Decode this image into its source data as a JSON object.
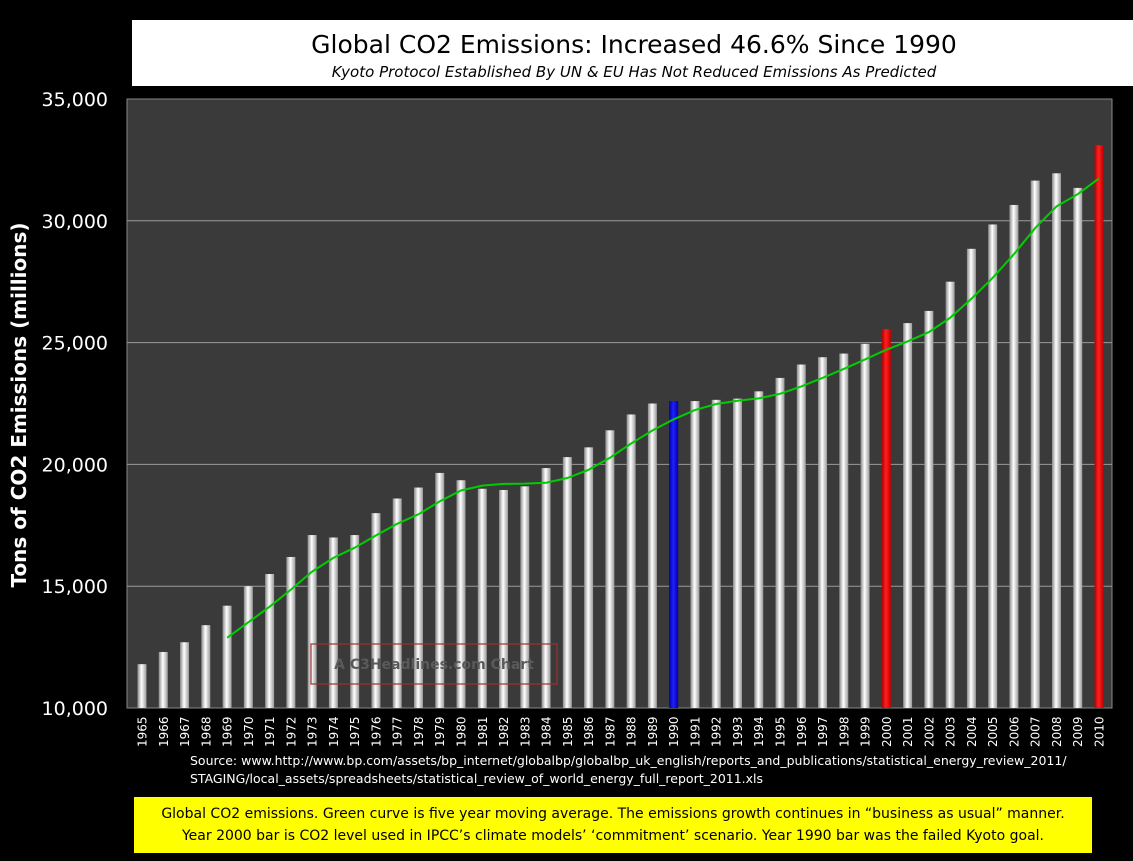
{
  "header": {
    "title": "Global CO2 Emissions: Increased 46.6% Since 1990",
    "subtitle": "Kyoto Protocol Established By UN & EU Has Not Reduced Emissions As Predicted"
  },
  "watermark": "A C3Headlines.com Chart",
  "source": {
    "line1": "Source: www.http://www.bp.com/assets/bp_internet/globalbp/globalbp_uk_english/reports_and_publications/statistical_energy_review_2011/",
    "line2": "STAGING/local_assets/spreadsheets/statistical_review_of_world_energy_full_report_2011.xls"
  },
  "note": {
    "line1": "Global CO2 emissions. Green curve is five year moving average. The emissions growth continues in “business as usual” manner.",
    "line2": "Year 2000 bar is CO2 level used in IPCC’s climate models’ ‘commitment’ scenario. Year 1990 bar was the failed Kyoto goal."
  },
  "chart_data": {
    "type": "bar",
    "title": "Global CO2 Emissions: Increased 46.6% Since 1990",
    "subtitle": "Kyoto Protocol Established By UN & EU Has Not Reduced Emissions As Predicted",
    "xlabel": "",
    "ylabel": "Tons of CO2 Emissions (millions)",
    "ylim": [
      10000,
      35000
    ],
    "yticks": [
      "10,000",
      "15,000",
      "20,000",
      "25,000",
      "30,000",
      "35,000"
    ],
    "ytick_values": [
      10000,
      15000,
      20000,
      25000,
      30000,
      35000
    ],
    "grid": true,
    "categories": [
      "1965",
      "1966",
      "1967",
      "1968",
      "1969",
      "1970",
      "1971",
      "1972",
      "1973",
      "1974",
      "1975",
      "1976",
      "1977",
      "1978",
      "1979",
      "1980",
      "1981",
      "1982",
      "1983",
      "1984",
      "1985",
      "1986",
      "1987",
      "1988",
      "1989",
      "1990",
      "1991",
      "1992",
      "1993",
      "1994",
      "1995",
      "1996",
      "1997",
      "1998",
      "1999",
      "2000",
      "2001",
      "2002",
      "2003",
      "2004",
      "2005",
      "2006",
      "2007",
      "2008",
      "2009",
      "2010"
    ],
    "values": [
      11800,
      12300,
      12700,
      13400,
      14200,
      15000,
      15500,
      16200,
      17100,
      17000,
      17100,
      18000,
      18600,
      19050,
      19650,
      19350,
      19000,
      18950,
      19100,
      19850,
      20300,
      20700,
      21400,
      22050,
      22500,
      22600,
      22600,
      22650,
      22700,
      23000,
      23550,
      24100,
      24400,
      24550,
      24950,
      25550,
      25800,
      26300,
      27500,
      28850,
      29850,
      30650,
      31650,
      31950,
      31350,
      33100
    ],
    "highlight_colors": {
      "1990": "#0000ff",
      "2000": "#ff0000",
      "2010": "#ff0000"
    },
    "bar_color": "#ffffff",
    "moving_average": {
      "window": 5,
      "color": "#00cc00",
      "start": "1969"
    },
    "plot_background": "#3a3a3a"
  }
}
